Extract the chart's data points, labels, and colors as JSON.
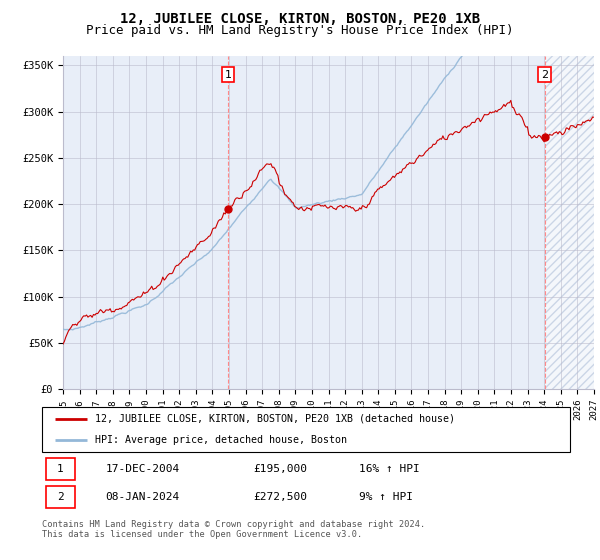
{
  "title": "12, JUBILEE CLOSE, KIRTON, BOSTON, PE20 1XB",
  "subtitle": "Price paid vs. HM Land Registry's House Price Index (HPI)",
  "ylim": [
    0,
    360000
  ],
  "yticks": [
    0,
    50000,
    100000,
    150000,
    200000,
    250000,
    300000,
    350000
  ],
  "ytick_labels": [
    "£0",
    "£50K",
    "£100K",
    "£150K",
    "£200K",
    "£250K",
    "£300K",
    "£350K"
  ],
  "x_start_year": 1995,
  "x_end_year": 2027,
  "transaction1_year": 2004.95,
  "transaction1_price": 195000,
  "transaction2_year": 2024.03,
  "transaction2_price": 272500,
  "hpi_line_color": "#94b8d8",
  "price_line_color": "#cc0000",
  "transaction_marker_color": "#cc0000",
  "vline_color": "#ff8888",
  "background_color": "#e8eef8",
  "hatch_color": "#b0c0d8",
  "legend_label1": "12, JUBILEE CLOSE, KIRTON, BOSTON, PE20 1XB (detached house)",
  "legend_label2": "HPI: Average price, detached house, Boston",
  "annotation1_label": "1",
  "annotation2_label": "2",
  "table_row1": [
    "1",
    "17-DEC-2004",
    "£195,000",
    "16% ↑ HPI"
  ],
  "table_row2": [
    "2",
    "08-JAN-2024",
    "£272,500",
    "9% ↑ HPI"
  ],
  "footer": "Contains HM Land Registry data © Crown copyright and database right 2024.\nThis data is licensed under the Open Government Licence v3.0.",
  "grid_color": "#bbbbcc",
  "title_fontsize": 10,
  "subtitle_fontsize": 9
}
